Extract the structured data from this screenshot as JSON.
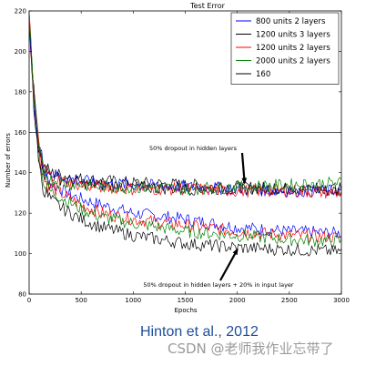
{
  "chart_data": {
    "type": "line",
    "title": "Test Error",
    "xlabel": "Epochs",
    "ylabel": "Number of errors",
    "xlim": [
      0,
      3000
    ],
    "ylim": [
      80,
      220
    ],
    "x_ticks": [
      "0",
      "500",
      "1000",
      "1500",
      "2000",
      "2500",
      "3000"
    ],
    "y_ticks": [
      "80",
      "100",
      "120",
      "140",
      "160",
      "180",
      "200",
      "220"
    ],
    "legend_position": "top-right",
    "reference_line": {
      "y": 160
    },
    "series": [
      {
        "name": "800 units 2 layers",
        "color": "#0000ff",
        "x": [
          0,
          50,
          100,
          150,
          200,
          300,
          400,
          500,
          700,
          1000,
          1500,
          2000,
          2500,
          3000
        ],
        "y": [
          215,
          180,
          150,
          138,
          135,
          132,
          129,
          127,
          124,
          120,
          117,
          113,
          111,
          110
        ]
      },
      {
        "name": "1200 units 3 layers",
        "color": "#000000",
        "x": [
          0,
          50,
          100,
          150,
          200,
          300,
          400,
          500,
          700,
          1000,
          1500,
          2000,
          2500,
          3000
        ],
        "y": [
          218,
          175,
          152,
          142,
          140,
          139,
          138,
          137,
          136,
          135,
          134,
          133,
          132,
          131
        ]
      },
      {
        "name": "1200 units 2 layers",
        "color": "#ff0000",
        "x": [
          0,
          50,
          100,
          150,
          200,
          300,
          400,
          500,
          700,
          1000,
          1500,
          2000,
          2500,
          3000
        ],
        "y": [
          214,
          178,
          148,
          136,
          133,
          130,
          127,
          124,
          120,
          117,
          114,
          111,
          109,
          108
        ]
      },
      {
        "name": "2000 units 2 layers",
        "color": "#008000",
        "x": [
          0,
          50,
          100,
          150,
          200,
          300,
          400,
          500,
          700,
          1000,
          1500,
          2000,
          2500,
          3000
        ],
        "y": [
          216,
          176,
          146,
          134,
          131,
          128,
          125,
          122,
          118,
          115,
          111,
          109,
          107,
          106
        ]
      },
      {
        "name": "160",
        "color": "#000000",
        "x": [
          0,
          50,
          100,
          150,
          200,
          300,
          400,
          500,
          700,
          1000,
          1500,
          2000,
          2500,
          3000
        ],
        "y": [
          217,
          172,
          143,
          130,
          127,
          123,
          120,
          117,
          113,
          109,
          105,
          103,
          102,
          101
        ]
      },
      {
        "name": "",
        "color": "#000000",
        "x": [
          0,
          50,
          100,
          150,
          200,
          300,
          500,
          700,
          1000,
          1500,
          2000,
          2500,
          3000
        ],
        "y": [
          219,
          170,
          150,
          142,
          139,
          137,
          135,
          134,
          133,
          132,
          132,
          132,
          132
        ]
      },
      {
        "name": "",
        "color": "#0000ff",
        "x": [
          0,
          50,
          100,
          150,
          200,
          300,
          500,
          700,
          1000,
          1500,
          2000,
          2500,
          3000
        ],
        "y": [
          216,
          172,
          151,
          143,
          140,
          138,
          136,
          135,
          134,
          133,
          132,
          131,
          131
        ]
      },
      {
        "name": "",
        "color": "#ff0000",
        "x": [
          0,
          50,
          100,
          150,
          200,
          300,
          500,
          700,
          1000,
          1500,
          2000,
          2500,
          3000
        ],
        "y": [
          218,
          174,
          149,
          141,
          138,
          136,
          134,
          133,
          132,
          132,
          131,
          131,
          130
        ]
      },
      {
        "name": "",
        "color": "#008000",
        "x": [
          0,
          50,
          100,
          150,
          200,
          300,
          500,
          700,
          1000,
          1500,
          2000,
          2500,
          3000
        ],
        "y": [
          217,
          171,
          148,
          140,
          137,
          135,
          134,
          133,
          133,
          132,
          133,
          134,
          135
        ]
      }
    ],
    "annotations": [
      {
        "text": "50% dropout in hidden layers",
        "arrow_to": {
          "x": 2070,
          "y": 135
        }
      },
      {
        "text": "50% dropout in hidden layers + 20% in input layer",
        "arrow_to": {
          "x": 2000,
          "y": 102
        }
      }
    ]
  },
  "caption": "Hinton et al., 2012",
  "watermark": "CSDN @老师我作业忘带了"
}
